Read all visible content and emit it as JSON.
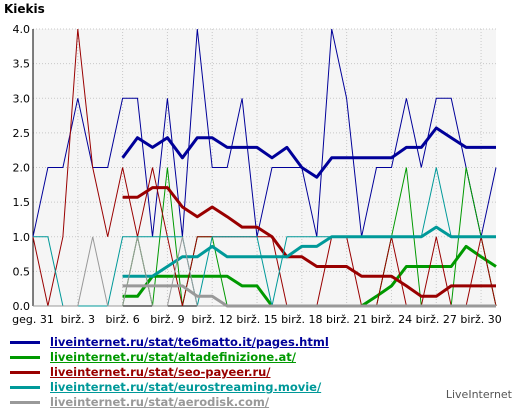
{
  "title": "Kiekis",
  "brand": "LiveInternet",
  "chart_data": {
    "type": "line",
    "title": "Kiekis",
    "ylim": [
      0,
      4
    ],
    "yticks": [
      "0.0",
      "0.5",
      "1.0",
      "1.5",
      "2.0",
      "2.5",
      "3.0",
      "3.5",
      "4.0"
    ],
    "grid": true,
    "legend_placement": "bottom",
    "xtick_labels": [
      "geg. 31",
      "birž. 3",
      "birž. 6",
      "birž. 9",
      "birž. 12",
      "birž. 15",
      "birž. 18",
      "birž. 21",
      "birž. 24",
      "birž. 27",
      "birž. 30"
    ],
    "days": 31,
    "series": [
      {
        "name": "liveinternet.ru/stat/te6matto.it/pages.html",
        "color": "#000099",
        "daily": [
          1,
          2,
          2,
          3,
          2,
          2,
          3,
          3,
          1,
          3,
          1,
          4,
          2,
          2,
          3,
          1,
          2,
          2,
          2,
          1,
          4,
          3,
          1,
          2,
          2,
          3,
          2,
          3,
          3,
          2,
          1,
          2
        ],
        "avg": [
          null,
          null,
          null,
          null,
          null,
          null,
          2.14,
          2.43,
          2.29,
          2.43,
          2.14,
          2.43,
          2.43,
          2.29,
          2.29,
          2.29,
          2.14,
          2.29,
          2.0,
          1.86,
          2.14,
          2.14,
          2.14,
          2.14,
          2.14,
          2.29,
          2.29,
          2.57,
          2.43,
          2.29,
          2.29,
          2.29
        ]
      },
      {
        "name": "liveinternet.ru/stat/altadefinizione.at/",
        "color": "#009900",
        "daily": [
          0,
          0,
          0,
          0,
          0,
          0,
          0,
          1,
          0,
          2,
          0,
          1,
          1,
          0,
          0,
          0,
          0,
          0,
          0,
          0,
          0,
          0,
          0,
          0,
          1,
          2,
          0,
          0,
          0,
          2,
          1,
          0
        ],
        "avg": [
          null,
          null,
          null,
          null,
          null,
          null,
          0.14,
          0.14,
          0.43,
          0.43,
          0.43,
          0.43,
          0.43,
          0.43,
          0.29,
          0.29,
          0.0,
          0.0,
          0.0,
          0.0,
          0.0,
          0.0,
          0.0,
          0.14,
          0.29,
          0.57,
          0.57,
          0.57,
          0.57,
          0.86,
          0.71,
          0.57
        ]
      },
      {
        "name": "liveinternet.ru/stat/seo-payeer.ru/",
        "color": "#990000",
        "daily": [
          1,
          0,
          1,
          4,
          2,
          1,
          2,
          1,
          2,
          1,
          0,
          1,
          1,
          1,
          1,
          1,
          1,
          0,
          0,
          0,
          1,
          1,
          0,
          0,
          1,
          0,
          0,
          1,
          0,
          0,
          1,
          0
        ],
        "avg": [
          null,
          null,
          null,
          null,
          null,
          null,
          1.57,
          1.57,
          1.71,
          1.71,
          1.43,
          1.29,
          1.43,
          1.29,
          1.14,
          1.14,
          1.0,
          0.71,
          0.71,
          0.57,
          0.57,
          0.57,
          0.43,
          0.43,
          0.43,
          0.29,
          0.14,
          0.14,
          0.29,
          0.29,
          0.29,
          0.29
        ]
      },
      {
        "name": "liveinternet.ru/stat/eurostreaming.movie/",
        "color": "#009999",
        "daily": [
          1,
          1,
          0,
          0,
          0,
          0,
          1,
          1,
          1,
          1,
          1,
          0,
          1,
          1,
          1,
          1,
          0,
          1,
          1,
          1,
          1,
          1,
          1,
          1,
          1,
          1,
          1,
          2,
          1,
          1,
          1,
          1
        ],
        "avg": [
          null,
          null,
          null,
          null,
          null,
          null,
          0.43,
          0.43,
          0.43,
          0.57,
          0.71,
          0.71,
          0.86,
          0.71,
          0.71,
          0.71,
          0.71,
          0.71,
          0.86,
          0.86,
          1.0,
          1.0,
          1.0,
          1.0,
          1.0,
          1.0,
          1.0,
          1.14,
          1.0,
          1.0,
          1.0,
          1.0
        ]
      },
      {
        "name": "liveinternet.ru/stat/aerodisk.com/",
        "color": "#999999",
        "daily": [
          0,
          0,
          0,
          0,
          1,
          0,
          0,
          1,
          0,
          0,
          1,
          0,
          0,
          0,
          0,
          0,
          0,
          0,
          0,
          0,
          0,
          0,
          0,
          0,
          0,
          0,
          0,
          0,
          0,
          0,
          0,
          0
        ],
        "avg": [
          null,
          null,
          null,
          null,
          null,
          null,
          0.29,
          0.29,
          0.29,
          0.29,
          0.29,
          0.14,
          0.14,
          0.0,
          0.0,
          0.0,
          0.0,
          0.0,
          0.0,
          0.0,
          0.0,
          0.0,
          0.0,
          0.0,
          0.0,
          0.0,
          0.0,
          0.0,
          0.0,
          0.0,
          0.0,
          0.0
        ]
      }
    ]
  }
}
